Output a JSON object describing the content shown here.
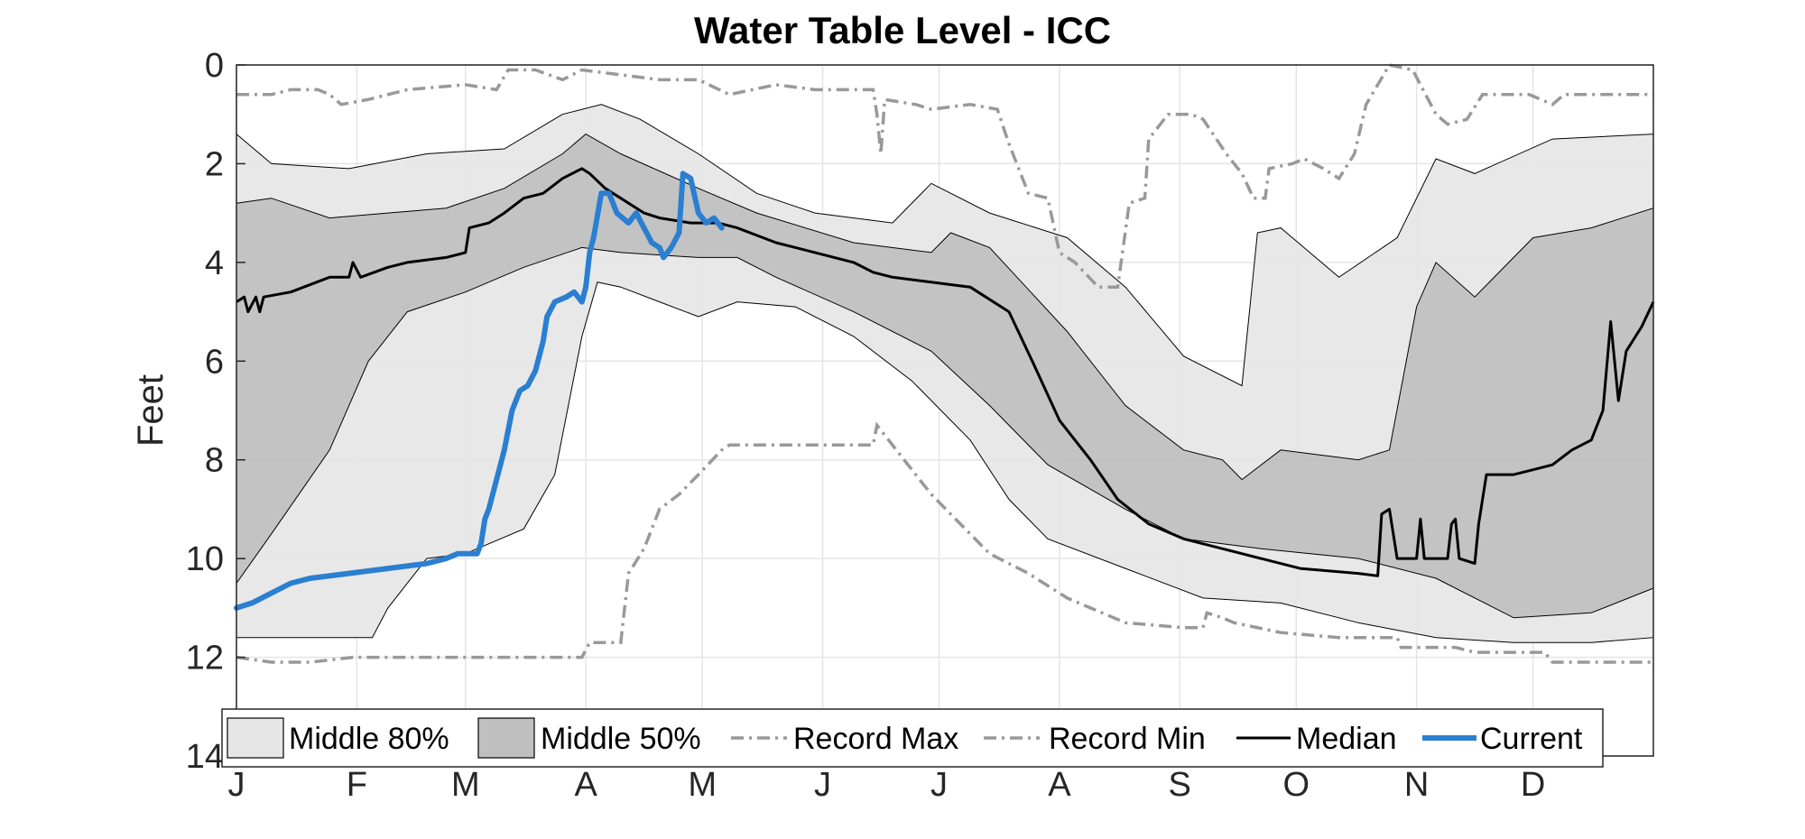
{
  "chart_data": {
    "type": "area",
    "title": "Water Table Level - ICC",
    "xlabel": "",
    "ylabel": "Feet",
    "y_reversed": true,
    "ylim": [
      0,
      14
    ],
    "xlim": [
      1,
      366
    ],
    "y_ticks": [
      0,
      2,
      4,
      6,
      8,
      10,
      12,
      14
    ],
    "x_ticks": [
      {
        "label": "J",
        "day": 1
      },
      {
        "label": "F",
        "day": 32
      },
      {
        "label": "M",
        "day": 60
      },
      {
        "label": "A",
        "day": 91
      },
      {
        "label": "M",
        "day": 121
      },
      {
        "label": "J",
        "day": 152
      },
      {
        "label": "J",
        "day": 182
      },
      {
        "label": "A",
        "day": 213
      },
      {
        "label": "S",
        "day": 244
      },
      {
        "label": "O",
        "day": 274
      },
      {
        "label": "N",
        "day": 305
      },
      {
        "label": "D",
        "day": 335
      }
    ],
    "grid": true,
    "legend_position": "bottom",
    "legend": [
      "Middle 80%",
      "Middle 50%",
      "Record Max",
      "Record Min",
      "Median",
      "Current"
    ],
    "colors": {
      "middle80": "#e6e6e6",
      "middle50": "#bfbfbf",
      "record": "#999999",
      "median": "#000000",
      "current": "#2b7fd1",
      "grid": "#e4e4e4",
      "axis": "#262626"
    },
    "band80_upper": [
      [
        1,
        1.4
      ],
      [
        10,
        2.0
      ],
      [
        30,
        2.1
      ],
      [
        50,
        1.8
      ],
      [
        70,
        1.7
      ],
      [
        85,
        1.0
      ],
      [
        95,
        0.8
      ],
      [
        105,
        1.1
      ],
      [
        120,
        1.8
      ],
      [
        135,
        2.6
      ],
      [
        150,
        3.0
      ],
      [
        170,
        3.2
      ],
      [
        180,
        2.4
      ],
      [
        195,
        3.0
      ],
      [
        215,
        3.5
      ],
      [
        230,
        4.5
      ],
      [
        245,
        5.9
      ],
      [
        260,
        6.5
      ],
      [
        264,
        3.4
      ],
      [
        270,
        3.3
      ],
      [
        285,
        4.3
      ],
      [
        300,
        3.5
      ],
      [
        310,
        1.9
      ],
      [
        320,
        2.2
      ],
      [
        340,
        1.5
      ],
      [
        366,
        1.4
      ]
    ],
    "band80_lower": [
      [
        1,
        11.6
      ],
      [
        20,
        11.6
      ],
      [
        30,
        11.6
      ],
      [
        36,
        11.6
      ],
      [
        40,
        11.0
      ],
      [
        50,
        10.0
      ],
      [
        60,
        9.9
      ],
      [
        75,
        9.4
      ],
      [
        83,
        8.3
      ],
      [
        90,
        5.5
      ],
      [
        94,
        4.4
      ],
      [
        100,
        4.5
      ],
      [
        110,
        4.8
      ],
      [
        120,
        5.1
      ],
      [
        130,
        4.8
      ],
      [
        145,
        4.9
      ],
      [
        160,
        5.5
      ],
      [
        175,
        6.4
      ],
      [
        190,
        7.6
      ],
      [
        200,
        8.8
      ],
      [
        210,
        9.6
      ],
      [
        230,
        10.2
      ],
      [
        250,
        10.8
      ],
      [
        270,
        10.9
      ],
      [
        290,
        11.3
      ],
      [
        310,
        11.6
      ],
      [
        330,
        11.7
      ],
      [
        350,
        11.7
      ],
      [
        366,
        11.6
      ]
    ],
    "band50_upper": [
      [
        1,
        2.8
      ],
      [
        10,
        2.7
      ],
      [
        25,
        3.1
      ],
      [
        40,
        3.0
      ],
      [
        55,
        2.9
      ],
      [
        70,
        2.5
      ],
      [
        85,
        1.8
      ],
      [
        91,
        1.4
      ],
      [
        100,
        1.8
      ],
      [
        120,
        2.5
      ],
      [
        135,
        3.0
      ],
      [
        160,
        3.6
      ],
      [
        180,
        3.8
      ],
      [
        185,
        3.4
      ],
      [
        195,
        3.7
      ],
      [
        215,
        5.4
      ],
      [
        230,
        6.9
      ],
      [
        245,
        7.8
      ],
      [
        255,
        8.0
      ],
      [
        260,
        8.4
      ],
      [
        270,
        7.8
      ],
      [
        280,
        7.9
      ],
      [
        290,
        8.0
      ],
      [
        298,
        7.8
      ],
      [
        305,
        4.9
      ],
      [
        310,
        4.0
      ],
      [
        320,
        4.7
      ],
      [
        335,
        3.5
      ],
      [
        350,
        3.3
      ],
      [
        366,
        2.9
      ]
    ],
    "band50_lower": [
      [
        1,
        10.5
      ],
      [
        10,
        9.5
      ],
      [
        25,
        7.8
      ],
      [
        35,
        6.0
      ],
      [
        45,
        5.0
      ],
      [
        60,
        4.6
      ],
      [
        75,
        4.1
      ],
      [
        90,
        3.7
      ],
      [
        100,
        3.8
      ],
      [
        120,
        3.9
      ],
      [
        130,
        3.9
      ],
      [
        140,
        4.3
      ],
      [
        160,
        5.0
      ],
      [
        180,
        5.8
      ],
      [
        195,
        6.9
      ],
      [
        210,
        8.1
      ],
      [
        230,
        9.0
      ],
      [
        245,
        9.6
      ],
      [
        265,
        9.8
      ],
      [
        290,
        10.0
      ],
      [
        310,
        10.4
      ],
      [
        330,
        11.2
      ],
      [
        350,
        11.1
      ],
      [
        366,
        10.6
      ]
    ],
    "record_max": [
      [
        1,
        0.6
      ],
      [
        10,
        0.6
      ],
      [
        15,
        0.5
      ],
      [
        22,
        0.5
      ],
      [
        25,
        0.6
      ],
      [
        28,
        0.8
      ],
      [
        35,
        0.7
      ],
      [
        45,
        0.5
      ],
      [
        60,
        0.4
      ],
      [
        68,
        0.5
      ],
      [
        71,
        0.1
      ],
      [
        78,
        0.1
      ],
      [
        85,
        0.3
      ],
      [
        90,
        0.1
      ],
      [
        100,
        0.2
      ],
      [
        110,
        0.3
      ],
      [
        120,
        0.3
      ],
      [
        128,
        0.6
      ],
      [
        140,
        0.4
      ],
      [
        150,
        0.5
      ],
      [
        165,
        0.5
      ],
      [
        166,
        1.0
      ],
      [
        167,
        1.8
      ],
      [
        168,
        0.7
      ],
      [
        176,
        0.8
      ],
      [
        180,
        0.9
      ],
      [
        190,
        0.8
      ],
      [
        197,
        0.9
      ],
      [
        200,
        1.6
      ],
      [
        205,
        2.6
      ],
      [
        210,
        2.7
      ],
      [
        213,
        3.8
      ],
      [
        217,
        4.0
      ],
      [
        223,
        4.5
      ],
      [
        228,
        4.5
      ],
      [
        231,
        2.8
      ],
      [
        235,
        2.7
      ],
      [
        236,
        1.5
      ],
      [
        241,
        1.0
      ],
      [
        247,
        1.0
      ],
      [
        250,
        1.1
      ],
      [
        256,
        1.8
      ],
      [
        260,
        2.2
      ],
      [
        263,
        2.7
      ],
      [
        266,
        2.7
      ],
      [
        267,
        2.1
      ],
      [
        273,
        2.0
      ],
      [
        276,
        1.9
      ],
      [
        281,
        2.1
      ],
      [
        285,
        2.3
      ],
      [
        289,
        1.8
      ],
      [
        292,
        0.8
      ],
      [
        298,
        0.0
      ],
      [
        304,
        0.1
      ],
      [
        310,
        1.0
      ],
      [
        313,
        1.2
      ],
      [
        318,
        1.1
      ],
      [
        322,
        0.6
      ],
      [
        334,
        0.6
      ],
      [
        340,
        0.8
      ],
      [
        343,
        0.6
      ],
      [
        366,
        0.6
      ]
    ],
    "record_min": [
      [
        1,
        12.0
      ],
      [
        10,
        12.1
      ],
      [
        20,
        12.1
      ],
      [
        31,
        12.0
      ],
      [
        60,
        12.0
      ],
      [
        75,
        12.0
      ],
      [
        90,
        12.0
      ],
      [
        92,
        11.7
      ],
      [
        100,
        11.7
      ],
      [
        102,
        10.3
      ],
      [
        106,
        9.8
      ],
      [
        110,
        9.0
      ],
      [
        115,
        8.7
      ],
      [
        120,
        8.3
      ],
      [
        126,
        7.8
      ],
      [
        128,
        7.7
      ],
      [
        165,
        7.7
      ],
      [
        166,
        7.3
      ],
      [
        170,
        7.7
      ],
      [
        180,
        8.7
      ],
      [
        190,
        9.5
      ],
      [
        195,
        9.9
      ],
      [
        205,
        10.3
      ],
      [
        215,
        10.8
      ],
      [
        230,
        11.3
      ],
      [
        245,
        11.4
      ],
      [
        250,
        11.4
      ],
      [
        251,
        11.1
      ],
      [
        255,
        11.2
      ],
      [
        258,
        11.3
      ],
      [
        270,
        11.5
      ],
      [
        285,
        11.6
      ],
      [
        300,
        11.6
      ],
      [
        301,
        11.8
      ],
      [
        315,
        11.8
      ],
      [
        320,
        11.9
      ],
      [
        338,
        11.9
      ],
      [
        340,
        12.1
      ],
      [
        366,
        12.1
      ]
    ],
    "median": [
      [
        1,
        4.8
      ],
      [
        3,
        4.7
      ],
      [
        4,
        5.0
      ],
      [
        6,
        4.7
      ],
      [
        7,
        5.0
      ],
      [
        8,
        4.7
      ],
      [
        15,
        4.6
      ],
      [
        25,
        4.3
      ],
      [
        30,
        4.3
      ],
      [
        31,
        4.0
      ],
      [
        33,
        4.3
      ],
      [
        40,
        4.1
      ],
      [
        45,
        4.0
      ],
      [
        55,
        3.9
      ],
      [
        60,
        3.8
      ],
      [
        61,
        3.3
      ],
      [
        66,
        3.2
      ],
      [
        70,
        3.0
      ],
      [
        75,
        2.7
      ],
      [
        80,
        2.6
      ],
      [
        85,
        2.3
      ],
      [
        90,
        2.1
      ],
      [
        92,
        2.2
      ],
      [
        96,
        2.5
      ],
      [
        100,
        2.7
      ],
      [
        106,
        3.0
      ],
      [
        110,
        3.1
      ],
      [
        118,
        3.2
      ],
      [
        125,
        3.2
      ],
      [
        130,
        3.3
      ],
      [
        140,
        3.6
      ],
      [
        150,
        3.8
      ],
      [
        160,
        4.0
      ],
      [
        165,
        4.2
      ],
      [
        170,
        4.3
      ],
      [
        180,
        4.4
      ],
      [
        190,
        4.5
      ],
      [
        200,
        5.0
      ],
      [
        206,
        6.0
      ],
      [
        213,
        7.2
      ],
      [
        221,
        8.0
      ],
      [
        228,
        8.8
      ],
      [
        236,
        9.3
      ],
      [
        245,
        9.6
      ],
      [
        260,
        9.9
      ],
      [
        275,
        10.2
      ],
      [
        290,
        10.3
      ],
      [
        295,
        10.35
      ],
      [
        296,
        9.1
      ],
      [
        298,
        9.0
      ],
      [
        300,
        10.0
      ],
      [
        305,
        10.0
      ],
      [
        306,
        9.2
      ],
      [
        307,
        10.0
      ],
      [
        313,
        10.0
      ],
      [
        314,
        9.3
      ],
      [
        315,
        9.2
      ],
      [
        316,
        10.0
      ],
      [
        320,
        10.1
      ],
      [
        321,
        9.3
      ],
      [
        323,
        8.3
      ],
      [
        330,
        8.3
      ],
      [
        335,
        8.2
      ],
      [
        340,
        8.1
      ],
      [
        345,
        7.8
      ],
      [
        350,
        7.6
      ],
      [
        353,
        7.0
      ],
      [
        355,
        5.2
      ],
      [
        357,
        6.8
      ],
      [
        359,
        5.8
      ],
      [
        363,
        5.3
      ],
      [
        366,
        4.8
      ]
    ],
    "current": [
      [
        1,
        11.0
      ],
      [
        5,
        10.9
      ],
      [
        10,
        10.7
      ],
      [
        15,
        10.5
      ],
      [
        20,
        10.4
      ],
      [
        30,
        10.3
      ],
      [
        40,
        10.2
      ],
      [
        50,
        10.1
      ],
      [
        55,
        10.0
      ],
      [
        58,
        9.9
      ],
      [
        60,
        9.9
      ],
      [
        63,
        9.9
      ],
      [
        64,
        9.7
      ],
      [
        65,
        9.2
      ],
      [
        66,
        9.0
      ],
      [
        68,
        8.4
      ],
      [
        70,
        7.8
      ],
      [
        72,
        7.0
      ],
      [
        74,
        6.6
      ],
      [
        76,
        6.5
      ],
      [
        78,
        6.2
      ],
      [
        80,
        5.6
      ],
      [
        81,
        5.1
      ],
      [
        83,
        4.8
      ],
      [
        86,
        4.7
      ],
      [
        88,
        4.6
      ],
      [
        90,
        4.8
      ],
      [
        91,
        4.5
      ],
      [
        92,
        3.8
      ],
      [
        93,
        3.5
      ],
      [
        95,
        2.6
      ],
      [
        97,
        2.6
      ],
      [
        99,
        3.0
      ],
      [
        102,
        3.2
      ],
      [
        104,
        3.0
      ],
      [
        106,
        3.3
      ],
      [
        108,
        3.6
      ],
      [
        110,
        3.7
      ],
      [
        111,
        3.9
      ],
      [
        113,
        3.7
      ],
      [
        115,
        3.4
      ],
      [
        116,
        2.2
      ],
      [
        118,
        2.3
      ],
      [
        120,
        3.0
      ],
      [
        122,
        3.2
      ],
      [
        124,
        3.1
      ],
      [
        126,
        3.3
      ]
    ]
  }
}
